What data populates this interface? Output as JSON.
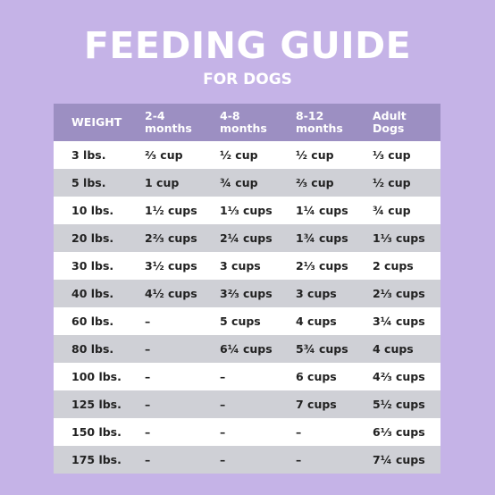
{
  "header": {
    "title": "FEEDING GUIDE",
    "subtitle": "FOR DOGS"
  },
  "table": {
    "columns": [
      "WEIGHT",
      "2-4 months",
      "4-8 months",
      "8-12 months",
      "Adult Dogs"
    ],
    "rows": [
      [
        "3 lbs.",
        "⅔ cup",
        "½ cup",
        "½ cup",
        "⅓ cup"
      ],
      [
        "5 lbs.",
        "1 cup",
        "¾ cup",
        "⅔ cup",
        "½ cup"
      ],
      [
        "10 lbs.",
        "1½ cups",
        "1⅓ cups",
        "1¼ cups",
        "¾ cup"
      ],
      [
        "20 lbs.",
        "2⅔ cups",
        "2¼ cups",
        "1¾ cups",
        "1⅓ cups"
      ],
      [
        "30 lbs.",
        "3½ cups",
        "3 cups",
        "2⅓ cups",
        "2 cups"
      ],
      [
        "40 lbs.",
        "4½ cups",
        "3⅔ cups",
        "3 cups",
        "2⅓ cups"
      ],
      [
        "60 lbs.",
        "–",
        "5 cups",
        "4 cups",
        "3¼ cups"
      ],
      [
        "80 lbs.",
        "–",
        "6¼ cups",
        "5¾ cups",
        "4 cups"
      ],
      [
        "100 lbs.",
        "–",
        "–",
        "6 cups",
        "4⅔ cups"
      ],
      [
        "125 lbs.",
        "–",
        "–",
        "7 cups",
        "5½ cups"
      ],
      [
        "150 lbs.",
        "–",
        "–",
        "–",
        "6⅓ cups"
      ],
      [
        "175 lbs.",
        "–",
        "–",
        "–",
        "7¼ cups"
      ]
    ]
  }
}
